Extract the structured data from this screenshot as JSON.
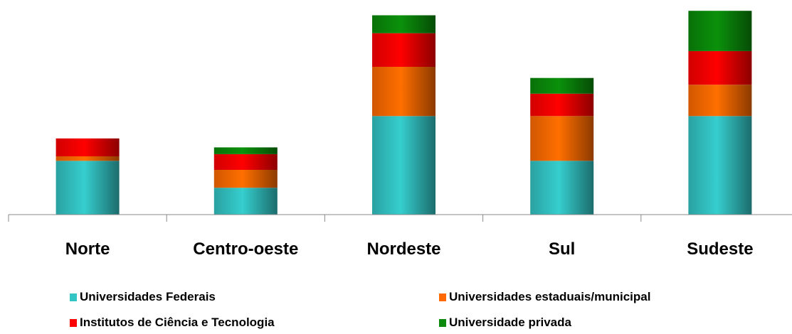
{
  "chart_data": {
    "type": "bar",
    "stacked": true,
    "categories": [
      "Norte",
      "Centro-oeste",
      "Nordeste",
      "Sul",
      "Sudeste"
    ],
    "series": [
      {
        "name": "Universidades Federais",
        "color": "#33c4c4",
        "values": [
          12,
          6,
          22,
          12,
          22
        ]
      },
      {
        "name": "Universidades estaduais/municipal",
        "color": "#ff6a00",
        "values": [
          1,
          4,
          11,
          10,
          7
        ]
      },
      {
        "name": "Institutos de Ciência e Tecnologia",
        "color": "#ff0000",
        "values": [
          4,
          3.5,
          7.5,
          5,
          7.5
        ]
      },
      {
        "name": "Universidade privada",
        "color": "#0a8a0a",
        "values": [
          0,
          1.5,
          4,
          3.5,
          9
        ]
      }
    ],
    "ylim": [
      0,
      46
    ],
    "legend_position": "bottom",
    "grid": false
  }
}
